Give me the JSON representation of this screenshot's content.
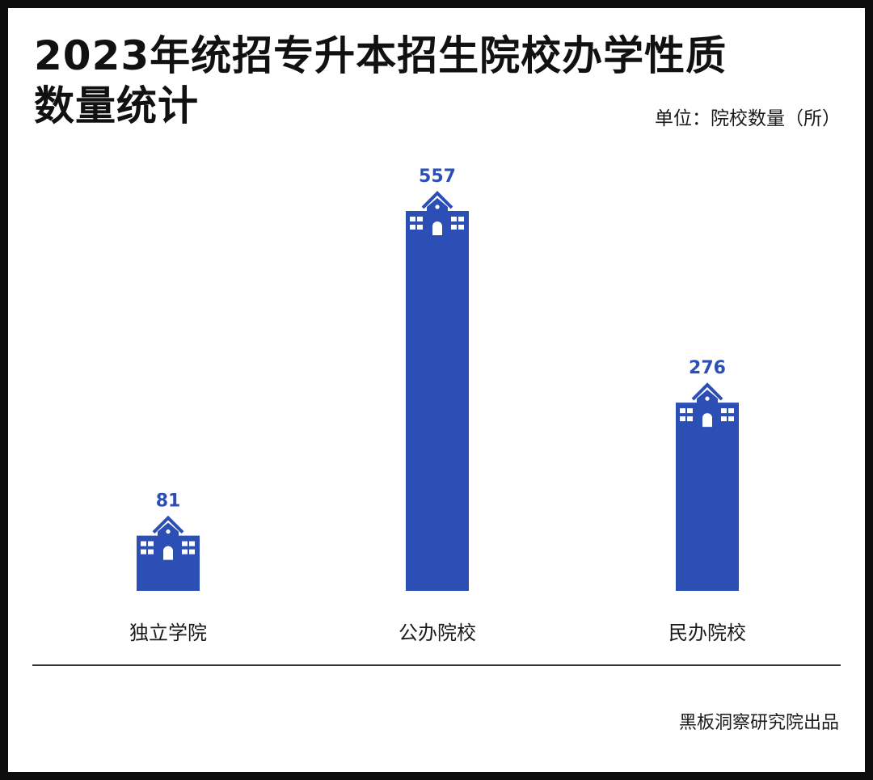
{
  "title_line1": "2023年统招专升本招生院校办学性质",
  "title_line2": "数量统计",
  "unit": "单位：院校数量（所）",
  "credit": "黑板洞察研究院出品",
  "colors": {
    "bar": "#2c4fb6",
    "value_label": "#2c4fb6",
    "text": "#1a1a1a",
    "icon_detail": "#ffffff"
  },
  "icon_names": [
    "school-building-icon"
  ],
  "chart_data": {
    "type": "bar",
    "title": "2023年统招专升本招生院校办学性质数量统计",
    "xlabel": "",
    "ylabel": "",
    "categories": [
      "独立学院",
      "公办院校",
      "民办院校"
    ],
    "values": [
      81,
      557,
      276
    ],
    "ylim": [
      0,
      557
    ],
    "grid": false,
    "legend": "none"
  }
}
